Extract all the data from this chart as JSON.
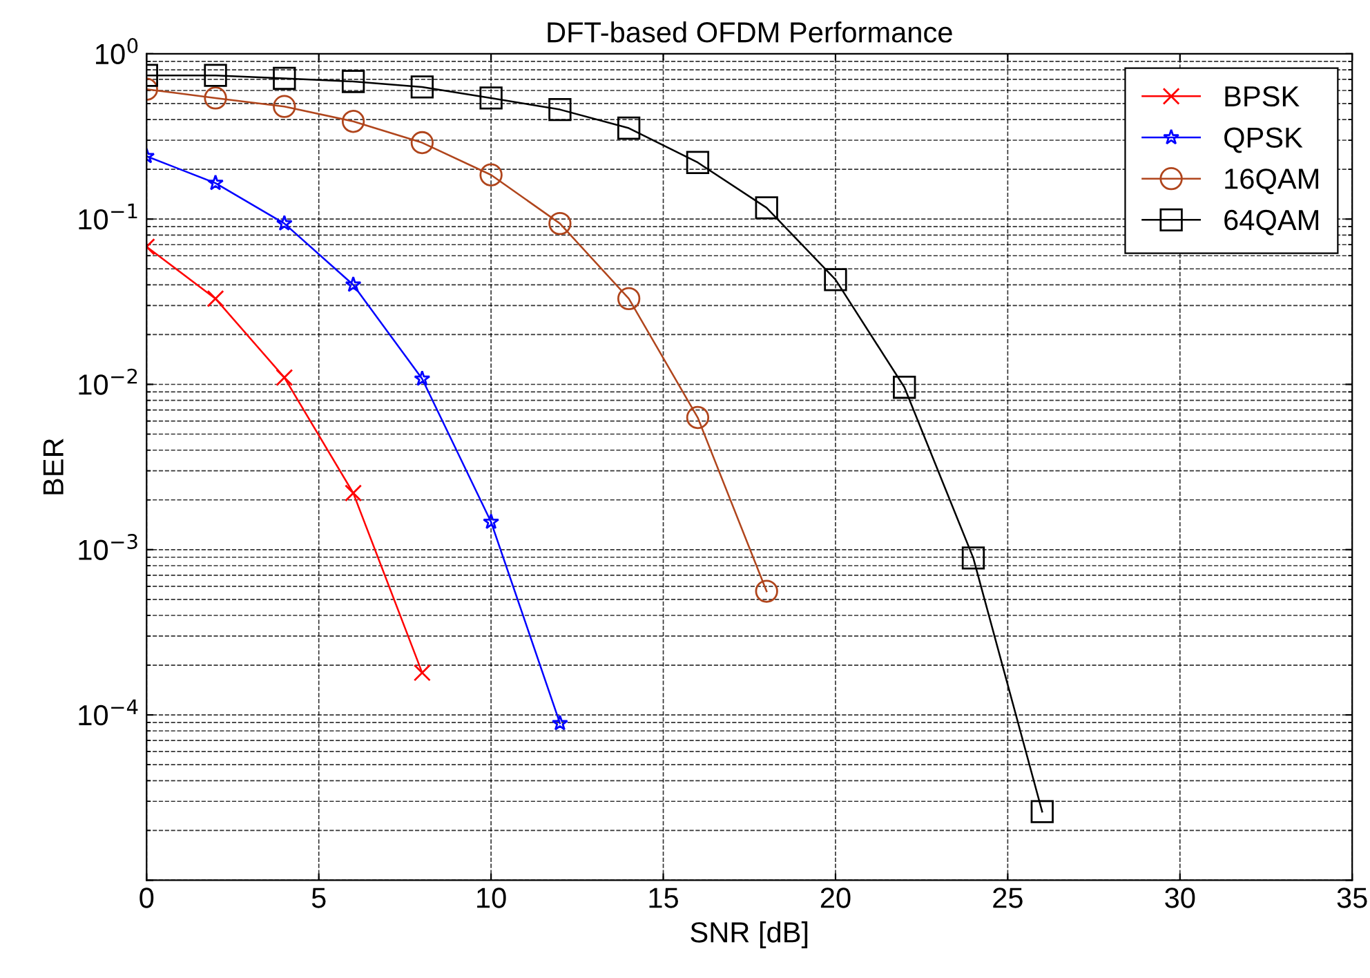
{
  "chart_data": {
    "type": "line",
    "title": "DFT-based OFDM Performance",
    "xlabel": "SNR [dB]",
    "ylabel": "BER",
    "log": "y",
    "grid": true,
    "legend": "top right",
    "xlim": [
      0,
      35
    ],
    "xticks": [
      0,
      5,
      10,
      15,
      20,
      25,
      30,
      35
    ],
    "ylim": [
      1e-05,
      1
    ],
    "yticks": [
      {
        "value": 1e-05,
        "label": null
      },
      {
        "value": 0.0001,
        "label": "10$^{−4}$"
      },
      {
        "value": 0.001,
        "label": "10$^{−3}$"
      },
      {
        "value": 0.01,
        "label": "10$^{−2}$"
      },
      {
        "value": 0.1,
        "label": "10$^{−1}$"
      },
      {
        "value": 1,
        "label": "10$^{0}$"
      }
    ],
    "series": [
      {
        "name": "BPSK",
        "color": "#ff0000",
        "marker": "cross",
        "x": [
          0,
          2,
          4,
          6,
          8
        ],
        "values": [
          0.068,
          0.033,
          0.011,
          0.0022,
          0.00018
        ]
      },
      {
        "name": "QPSK",
        "color": "#0000ff",
        "marker": "star",
        "x": [
          0,
          2,
          4,
          6,
          8,
          10,
          12
        ],
        "values": [
          0.24,
          0.165,
          0.094,
          0.04,
          0.0108,
          0.00147,
          8.9e-05
        ]
      },
      {
        "name": "16QAM",
        "color": "#b0451c",
        "marker": "circle",
        "x": [
          0,
          2,
          4,
          6,
          8,
          10,
          12,
          14,
          16,
          18
        ],
        "values": [
          0.61,
          0.54,
          0.48,
          0.39,
          0.29,
          0.185,
          0.094,
          0.033,
          0.0063,
          0.00056
        ]
      },
      {
        "name": "64QAM",
        "color": "#000000",
        "marker": "square",
        "x": [
          0,
          2,
          4,
          6,
          8,
          10,
          12,
          14,
          16,
          18,
          20,
          22,
          24,
          26
        ],
        "values": [
          0.74,
          0.74,
          0.71,
          0.68,
          0.63,
          0.54,
          0.46,
          0.355,
          0.22,
          0.117,
          0.043,
          0.0096,
          0.00089,
          2.6e-05
        ]
      }
    ]
  }
}
